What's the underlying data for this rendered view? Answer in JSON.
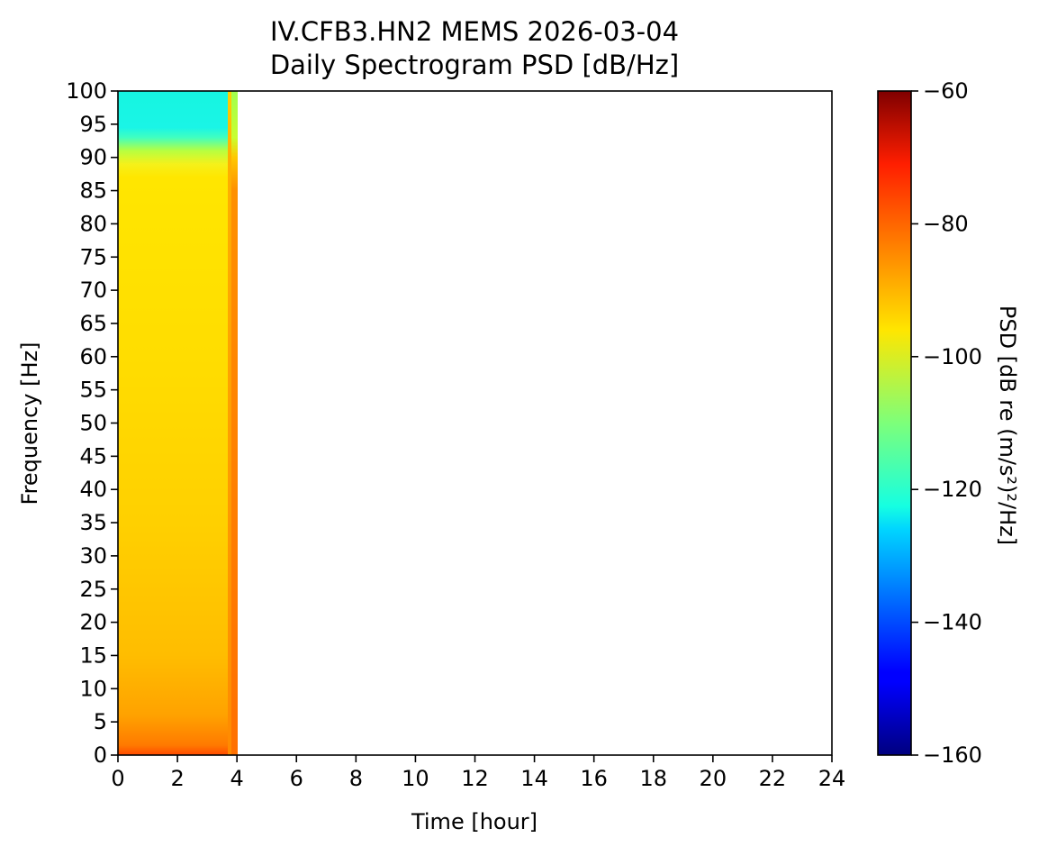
{
  "chart_data": {
    "type": "heatmap",
    "title": "IV.CFB3.HN2 MEMS 2026-03-04",
    "subtitle": "Daily Spectrogram PSD [dB/Hz]",
    "xlabel": "Time [hour]",
    "ylabel": "Frequency [Hz]",
    "xlim": [
      0,
      24
    ],
    "ylim": [
      0,
      100
    ],
    "xticks": [
      "0",
      "2",
      "4",
      "6",
      "8",
      "10",
      "12",
      "14",
      "16",
      "18",
      "20",
      "22",
      "24"
    ],
    "yticks": [
      "0",
      "5",
      "10",
      "15",
      "20",
      "25",
      "30",
      "35",
      "40",
      "45",
      "50",
      "55",
      "60",
      "65",
      "70",
      "75",
      "80",
      "85",
      "90",
      "95",
      "100"
    ],
    "colorbar": {
      "label": "PSD [dB re (m/s²)²/Hz]",
      "colormap": "jet",
      "range": [
        -160,
        -60
      ],
      "ticks": [
        "−60",
        "−80",
        "−100",
        "−120",
        "−140",
        "−160"
      ]
    },
    "data_extent_hours": [
      0,
      4
    ],
    "psd_profile": [
      {
        "f_range": [
          0,
          1
        ],
        "psd": -78
      },
      {
        "f_range": [
          1,
          5
        ],
        "psd": -85
      },
      {
        "f_range": [
          5,
          12
        ],
        "psd": -88
      },
      {
        "f_range": [
          12,
          25
        ],
        "psd": -91
      },
      {
        "f_range": [
          25,
          50
        ],
        "psd": -93
      },
      {
        "f_range": [
          50,
          88
        ],
        "psd": -94
      },
      {
        "f_range": [
          88,
          92
        ],
        "psd": -102
      },
      {
        "f_range": [
          92,
          95
        ],
        "psd": -113
      },
      {
        "f_range": [
          95,
          100
        ],
        "psd": -121
      }
    ],
    "trailing_column": {
      "t_range": [
        3.7,
        4.0
      ],
      "psd_low": -84,
      "psd_high_band": -100
    }
  }
}
